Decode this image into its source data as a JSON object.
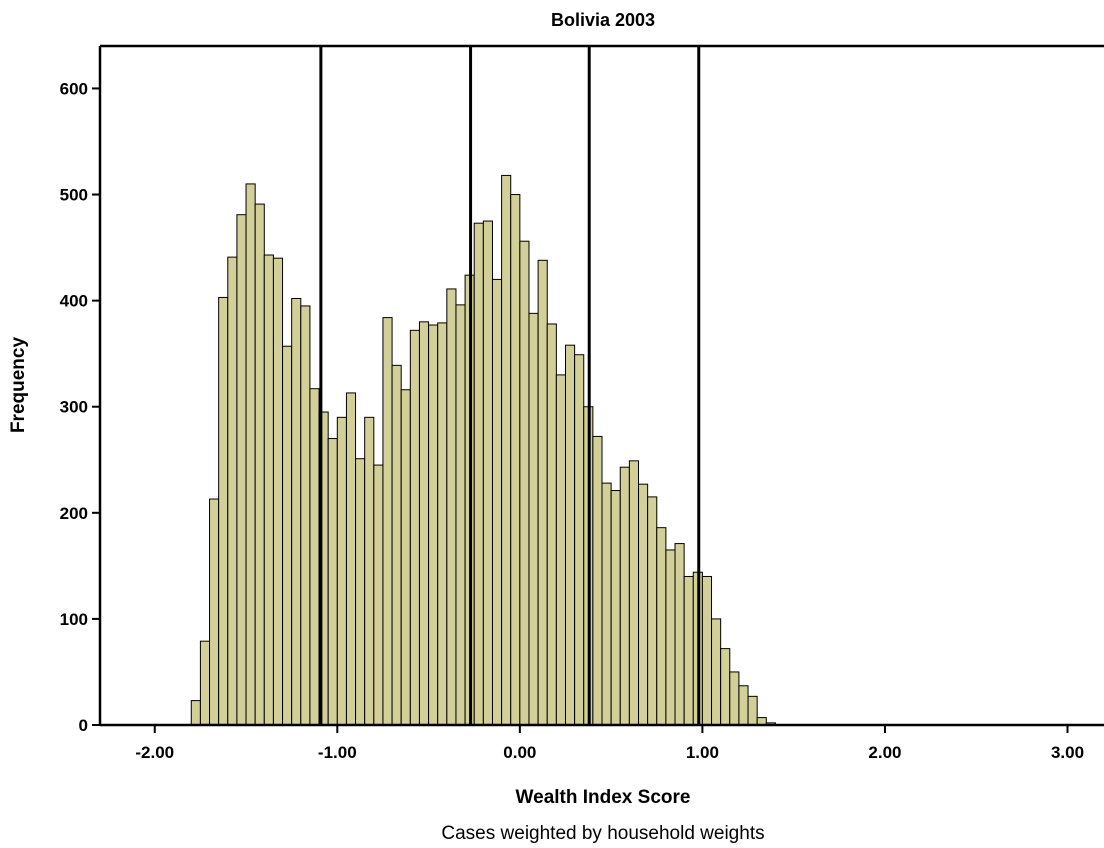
{
  "chart_data": {
    "type": "bar",
    "title": "Bolivia 2003",
    "xlabel": "Wealth Index Score",
    "ylabel": "Frequency",
    "note": "Cases weighted by household weights",
    "xlim": [
      -2.3,
      3.2
    ],
    "ylim": [
      0,
      640
    ],
    "bin_width": 0.05,
    "bin_start": -1.8,
    "x_ticks": [
      -2,
      -1,
      0,
      1,
      2,
      3
    ],
    "x_tick_labels": [
      "-2.00",
      "-1.00",
      "0.00",
      "1.00",
      "2.00",
      "3.00"
    ],
    "y_ticks": [
      0,
      100,
      200,
      300,
      400,
      500,
      600
    ],
    "y_tick_labels": [
      "0",
      "100",
      "200",
      "300",
      "400",
      "500",
      "600"
    ],
    "values": [
      23,
      79,
      213,
      403,
      441,
      481,
      510,
      491,
      443,
      440,
      357,
      402,
      395,
      317,
      295,
      270,
      290,
      313,
      251,
      290,
      245,
      384,
      339,
      316,
      372,
      380,
      377,
      379,
      411,
      396,
      424,
      473,
      475,
      420,
      518,
      500,
      456,
      388,
      438,
      378,
      330,
      358,
      349,
      300,
      272,
      228,
      221,
      243,
      249,
      227,
      215,
      186,
      165,
      171,
      140,
      144,
      140,
      100,
      72,
      50,
      37,
      27,
      7,
      2
    ],
    "vertical_lines_x": [
      -1.09,
      -0.27,
      0.38,
      0.98
    ],
    "bar_color": "#d3cf98",
    "bar_edge_color": "#000000"
  }
}
